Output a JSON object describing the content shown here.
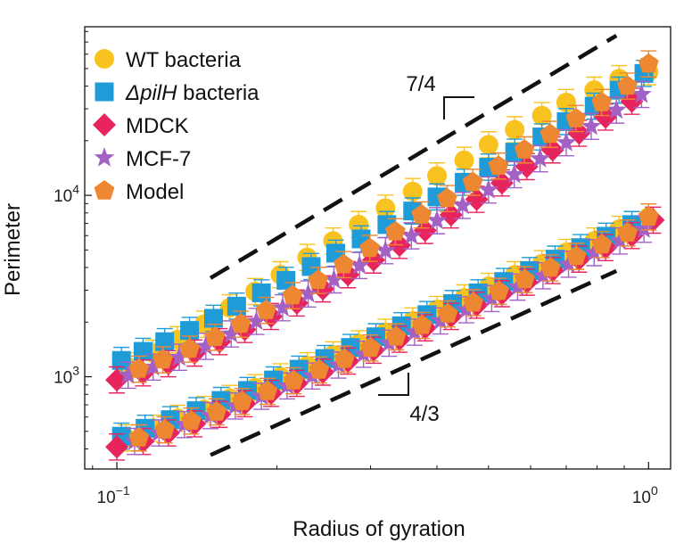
{
  "chart_data": {
    "type": "scatter",
    "xscale": "log",
    "yscale": "log",
    "xlabel": "Radius of gyration",
    "ylabel": "Perimeter",
    "xlim": [
      0.087,
      1.1
    ],
    "ylim": [
      310,
      85000
    ],
    "xticks": [
      {
        "value": 0.1,
        "base": "10",
        "exp": "−1"
      },
      {
        "value": 1.0,
        "base": "10",
        "exp": "0"
      }
    ],
    "yticks": [
      {
        "value": 1000,
        "base": "10",
        "exp": "3"
      },
      {
        "value": 10000,
        "base": "10",
        "exp": "4"
      }
    ],
    "grid": false,
    "legend_position": "top-left",
    "series": [
      {
        "name": "WT bacteria",
        "marker": "circle",
        "color": "#F9C31F",
        "upper_x": [
          0.104,
          0.117,
          0.13,
          0.146,
          0.163,
          0.182,
          0.203,
          0.228,
          0.255,
          0.285,
          0.32,
          0.36,
          0.4,
          0.45,
          0.5,
          0.56,
          0.63,
          0.7,
          0.79,
          0.88,
          1.0
        ],
        "upper_y": [
          1150,
          1350,
          1600,
          1950,
          2400,
          2950,
          3650,
          4550,
          5600,
          6900,
          8500,
          10500,
          12800,
          15600,
          19000,
          23000,
          27500,
          32500,
          38000,
          44000,
          48000
        ],
        "lower_x": [
          0.104,
          0.117,
          0.13,
          0.146,
          0.163,
          0.182,
          0.203,
          0.228,
          0.255,
          0.285,
          0.32,
          0.36,
          0.4,
          0.45,
          0.5,
          0.56,
          0.63,
          0.7,
          0.79,
          0.88,
          1.0
        ],
        "lower_y": [
          460,
          520,
          590,
          660,
          760,
          870,
          1000,
          1150,
          1320,
          1520,
          1760,
          2030,
          2350,
          2720,
          3150,
          3650,
          4200,
          4850,
          5600,
          6500,
          7600
        ]
      },
      {
        "name": "ΔpilH bacteria",
        "italic_part": "pilH",
        "marker": "square",
        "color": "#1F9BD8",
        "upper_x": [
          0.102,
          0.112,
          0.123,
          0.137,
          0.152,
          0.168,
          0.187,
          0.208,
          0.232,
          0.258,
          0.288,
          0.322,
          0.36,
          0.4,
          0.45,
          0.5,
          0.56,
          0.63,
          0.7,
          0.79,
          0.88,
          0.98
        ],
        "upper_y": [
          1230,
          1380,
          1560,
          1800,
          2100,
          2450,
          2900,
          3400,
          4050,
          4800,
          5750,
          6900,
          8200,
          9800,
          11800,
          14300,
          17300,
          21000,
          25500,
          31000,
          38000,
          47000
        ],
        "lower_x": [
          0.102,
          0.113,
          0.126,
          0.141,
          0.157,
          0.176,
          0.197,
          0.22,
          0.246,
          0.275,
          0.307,
          0.343,
          0.383,
          0.428,
          0.478,
          0.534,
          0.597,
          0.667,
          0.745,
          0.832,
          0.93
        ],
        "lower_y": [
          470,
          520,
          580,
          650,
          740,
          840,
          960,
          1100,
          1260,
          1450,
          1660,
          1910,
          2200,
          2530,
          2900,
          3350,
          3850,
          4450,
          5150,
          5950,
          6900
        ]
      },
      {
        "name": "MDCK",
        "marker": "diamond",
        "color": "#E8245C",
        "upper_x": [
          0.1,
          0.112,
          0.125,
          0.14,
          0.156,
          0.174,
          0.195,
          0.218,
          0.244,
          0.272,
          0.304,
          0.34,
          0.38,
          0.425,
          0.475,
          0.53,
          0.59,
          0.66,
          0.74,
          0.83,
          0.93
        ],
        "upper_y": [
          960,
          1050,
          1180,
          1350,
          1560,
          1820,
          2150,
          2550,
          3050,
          3650,
          4400,
          5300,
          6400,
          7800,
          9500,
          11700,
          14400,
          17800,
          22000,
          27000,
          33000
        ],
        "lower_x": [
          0.1,
          0.112,
          0.125,
          0.14,
          0.156,
          0.174,
          0.195,
          0.218,
          0.244,
          0.272,
          0.304,
          0.34,
          0.38,
          0.425,
          0.475,
          0.53,
          0.59,
          0.66,
          0.74,
          0.83,
          0.93,
          1.02
        ],
        "lower_y": [
          410,
          440,
          490,
          550,
          620,
          710,
          810,
          920,
          1060,
          1220,
          1400,
          1610,
          1860,
          2150,
          2480,
          2870,
          3320,
          3850,
          4450,
          5150,
          6000,
          7300
        ]
      },
      {
        "name": "MCF-7",
        "marker": "star",
        "color": "#A361C6",
        "upper_x": [
          0.105,
          0.117,
          0.131,
          0.147,
          0.164,
          0.183,
          0.205,
          0.229,
          0.256,
          0.286,
          0.32,
          0.358,
          0.4,
          0.447,
          0.5,
          0.559,
          0.625,
          0.7,
          0.78,
          0.87,
          0.97
        ],
        "upper_y": [
          1020,
          1130,
          1280,
          1470,
          1720,
          2020,
          2400,
          2860,
          3420,
          4100,
          4950,
          5980,
          7250,
          8800,
          10700,
          13000,
          15900,
          19500,
          24000,
          29500,
          36000
        ],
        "lower_x": [
          0.108,
          0.12,
          0.134,
          0.15,
          0.167,
          0.187,
          0.209,
          0.233,
          0.261,
          0.291,
          0.325,
          0.363,
          0.406,
          0.454,
          0.507,
          0.567,
          0.633,
          0.707,
          0.79,
          0.883,
          0.98
        ],
        "lower_y": [
          440,
          490,
          545,
          610,
          690,
          780,
          890,
          1010,
          1160,
          1330,
          1530,
          1760,
          2030,
          2340,
          2700,
          3120,
          3600,
          4170,
          4830,
          5600,
          6500
        ]
      },
      {
        "name": "Model",
        "marker": "pentagon",
        "color": "#EE8731",
        "upper_x": [
          0.11,
          0.122,
          0.137,
          0.153,
          0.171,
          0.191,
          0.214,
          0.239,
          0.267,
          0.299,
          0.334,
          0.374,
          0.418,
          0.467,
          0.522,
          0.584,
          0.653,
          0.73,
          0.816,
          0.912,
          1.0
        ],
        "upper_y": [
          1100,
          1240,
          1420,
          1650,
          1950,
          2320,
          2800,
          3400,
          4150,
          5100,
          6300,
          7800,
          9600,
          11800,
          14500,
          17800,
          21700,
          26500,
          32500,
          40000,
          53000
        ],
        "lower_x": [
          0.11,
          0.123,
          0.138,
          0.154,
          0.172,
          0.192,
          0.215,
          0.24,
          0.268,
          0.3,
          0.335,
          0.375,
          0.419,
          0.468,
          0.523,
          0.585,
          0.654,
          0.731,
          0.817,
          0.913,
          1.0
        ],
        "lower_y": [
          460,
          510,
          570,
          640,
          730,
          830,
          950,
          1090,
          1250,
          1440,
          1660,
          1920,
          2220,
          2560,
          2960,
          3430,
          3980,
          4610,
          5350,
          6200,
          7600
        ]
      }
    ],
    "reference_lines": [
      {
        "label": "7/4",
        "slope": 1.75,
        "x": [
          0.15,
          0.87
        ],
        "y": [
          3500,
          76000
        ],
        "style": "dashed"
      },
      {
        "label": "4/3",
        "slope": 1.333,
        "x": [
          0.15,
          0.87
        ],
        "y": [
          370,
          3830
        ],
        "style": "dashed"
      }
    ]
  }
}
